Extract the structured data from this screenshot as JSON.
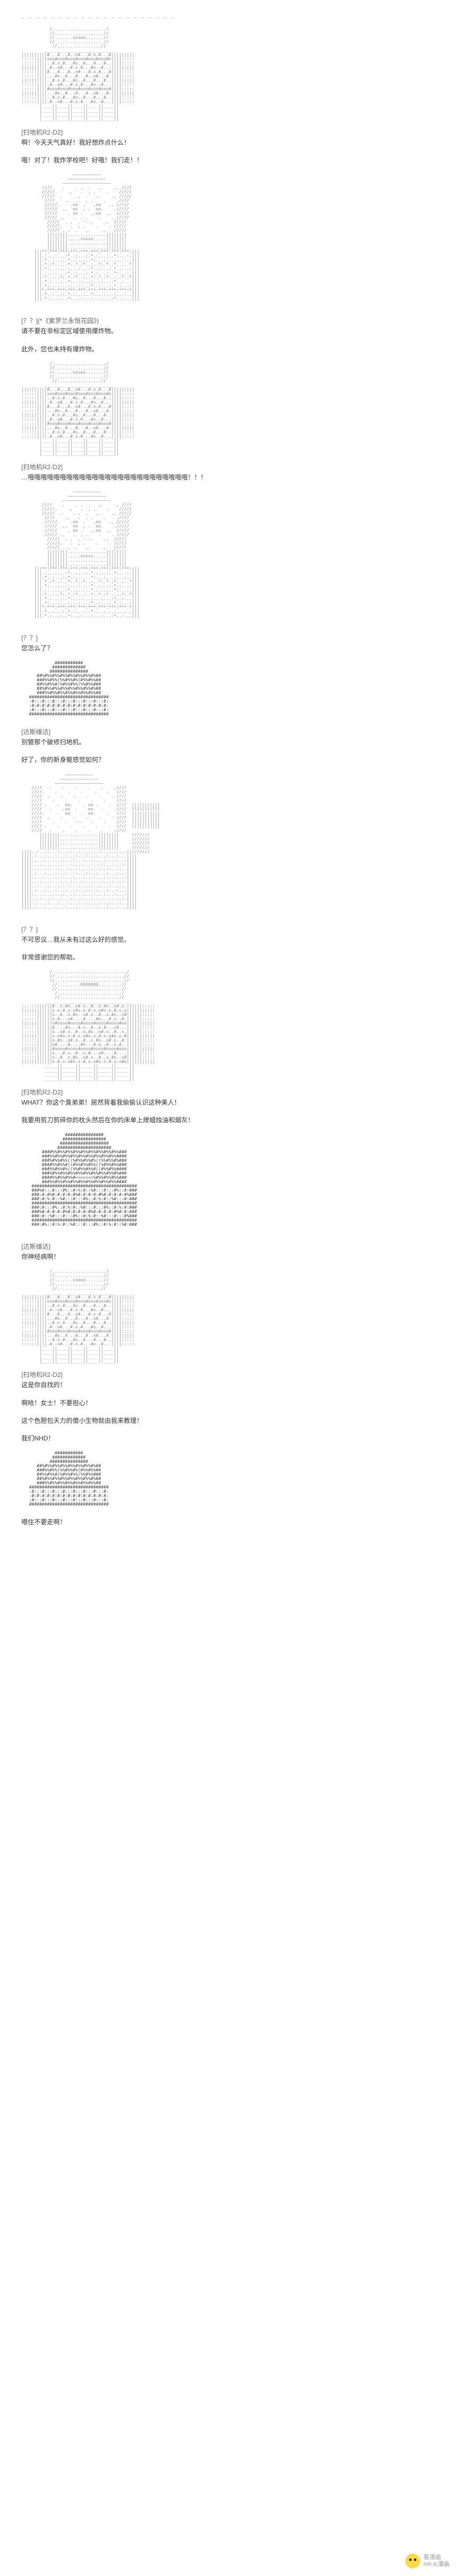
{
  "separator": "— — — — — — — — — — — — — — — — — — — — —",
  "blocks": [
    {
      "art": "r2d2",
      "speaker": "[扫地机R2-D2]",
      "lines": [
        "啊！今天天气真好！我好想炸点什么！",
        "哦！对了！我炸学校吧！好哦！我们走！！"
      ]
    },
    {
      "art": "girl",
      "speaker": "[？？](*《紫罗兰永恒花园》)",
      "lines": [
        "请不要在非标定区域使用爆炸物。",
        "此外，您也未持有爆炸物。"
      ]
    },
    {
      "art": "r2d2",
      "speaker": "[扫地机R2-D2]",
      "lines": [
        "…哦哦哦哦哦哦哦哦哦哦哦哦哦哦哦哦哦哦哦哦哦哦哦哦哦！！！"
      ]
    },
    {
      "art": "girl",
      "speaker": "[？？]",
      "lines": [
        "您怎么了？"
      ]
    },
    {
      "art": "vader_small",
      "speaker": "[达斯维达]",
      "lines": [
        "别管那个破修扫地机。",
        "好了，你的新身躯感觉如何？"
      ]
    },
    {
      "art": "girl_hand",
      "speaker": "[？？]",
      "lines": [
        "不可思议…我从未有过这么好的感觉。",
        "非常感谢您的帮助。"
      ]
    },
    {
      "art": "r2d2_big",
      "speaker": "[扫地机R2-D2]",
      "lines": [
        "WHAT？你这个臭弟弟！居然背着我偷偷认识这种美人！",
        "我要用剪刀剪碎你的枕头然后在你的床单上燎蜡烛油和烟灰！"
      ]
    },
    {
      "art": "vader",
      "speaker": "[达斯维达]",
      "lines": [
        "你神经病啊！"
      ]
    },
    {
      "art": "r2d2",
      "speaker": "[扫地机R2-D2]",
      "lines": [
        "这是你自找的！",
        "啊哈！女士！不要担心！",
        "这个色胆包天力的傻小生物就由我来教理！",
        "我们NHD！"
      ]
    },
    {
      "art": "vader_small",
      "speaker": "",
      "lines": [
        "喂住不要走啊！"
      ]
    }
  ],
  "watermark": {
    "l1": "看漫画",
    "l2": "mh.tc漫画"
  },
  "art_color": "#888888",
  "art_dark": "#444444"
}
